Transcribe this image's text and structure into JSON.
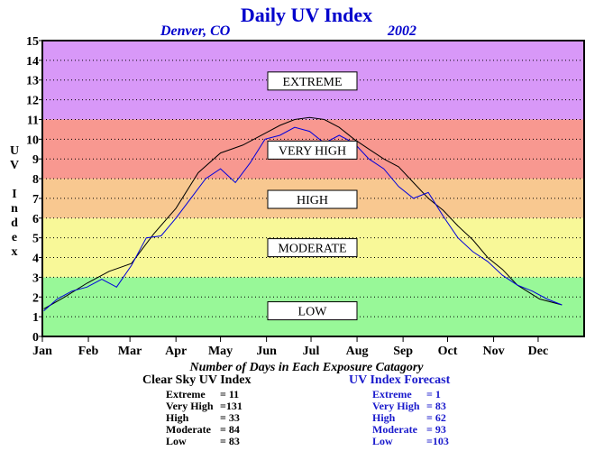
{
  "chart_data": {
    "type": "line",
    "title": "Daily UV Index",
    "location": "Denver, CO",
    "year": "2002",
    "ylabel": "UV Index",
    "xlabel": "",
    "ylim": [
      0,
      15
    ],
    "yticks": [
      "0",
      "1",
      "2",
      "3",
      "4",
      "5",
      "6",
      "7",
      "8",
      "9",
      "10",
      "11",
      "12",
      "13",
      "14",
      "15"
    ],
    "x_tick_labels": [
      "Jan",
      "Feb",
      "Mar",
      "Apr",
      "May",
      "Jun",
      "Jul",
      "Aug",
      "Sep",
      "Oct",
      "Nov",
      "Dec"
    ],
    "grid": "dotted horizontal",
    "bands": [
      {
        "label": "LOW",
        "from": 0,
        "to": 3,
        "color": "#98f898",
        "label_value": 1.3
      },
      {
        "label": "MODERATE",
        "from": 3,
        "to": 6,
        "color": "#f8f898",
        "label_value": 4.5
      },
      {
        "label": "HIGH",
        "from": 6,
        "to": 8,
        "color": "#f8c890",
        "label_value": 6.95
      },
      {
        "label": "VERY HIGH",
        "from": 8,
        "to": 11,
        "color": "#f89890",
        "label_value": 9.45
      },
      {
        "label": "EXTREME",
        "from": 11,
        "to": 15,
        "color": "#d898f8",
        "label_value": 12.95
      }
    ],
    "series": [
      {
        "name": "Clear Sky UV Index",
        "color": "#000000",
        "x": [
          1,
          15,
          30,
          45,
          60,
          75,
          90,
          105,
          120,
          135,
          150,
          160,
          170,
          180,
          190,
          200,
          210,
          220,
          230,
          240,
          250,
          260,
          270,
          280,
          290,
          300,
          310,
          320,
          335,
          350
        ],
        "values": [
          1.4,
          2.0,
          2.7,
          3.3,
          3.7,
          5.2,
          6.5,
          8.3,
          9.3,
          9.7,
          10.3,
          10.7,
          11.0,
          11.1,
          11.0,
          10.6,
          10.0,
          9.5,
          9.0,
          8.6,
          7.8,
          7.0,
          6.4,
          5.6,
          4.9,
          4.0,
          3.4,
          2.6,
          1.9,
          1.6
        ]
      },
      {
        "name": "UV Index Forecast",
        "color": "#0000dd",
        "x": [
          1,
          10,
          20,
          30,
          40,
          50,
          60,
          70,
          80,
          90,
          100,
          110,
          120,
          130,
          140,
          150,
          160,
          170,
          180,
          190,
          200,
          210,
          220,
          230,
          240,
          250,
          260,
          270,
          280,
          290,
          300,
          310,
          320,
          330,
          340,
          350
        ],
        "values": [
          1.3,
          1.9,
          2.3,
          2.5,
          2.9,
          2.5,
          3.6,
          5.0,
          5.1,
          6.0,
          7.0,
          8.0,
          8.5,
          7.8,
          8.8,
          10.0,
          10.2,
          10.6,
          10.4,
          9.8,
          10.2,
          9.8,
          9.0,
          8.5,
          7.6,
          7.0,
          7.3,
          6.1,
          5.0,
          4.3,
          3.8,
          3.1,
          2.6,
          2.3,
          1.9,
          1.6
        ]
      }
    ]
  },
  "counts": {
    "heading": "Number of Days in Each Exposure Catagory",
    "clear_sky": {
      "title": "Clear Sky UV Index",
      "rows": [
        {
          "label": "Extreme",
          "value": "=  11"
        },
        {
          "label": "Very High",
          "value": "=131"
        },
        {
          "label": "High",
          "value": "=  33"
        },
        {
          "label": "Moderate",
          "value": "=  84"
        },
        {
          "label": "Low",
          "value": "=  83"
        }
      ]
    },
    "forecast": {
      "title": "UV Index Forecast",
      "rows": [
        {
          "label": "Extreme",
          "value": "=    1"
        },
        {
          "label": "Very High",
          "value": "=  83"
        },
        {
          "label": "High",
          "value": "=  62"
        },
        {
          "label": "Moderate",
          "value": "=  93"
        },
        {
          "label": "Low",
          "value": "=103"
        }
      ]
    }
  }
}
